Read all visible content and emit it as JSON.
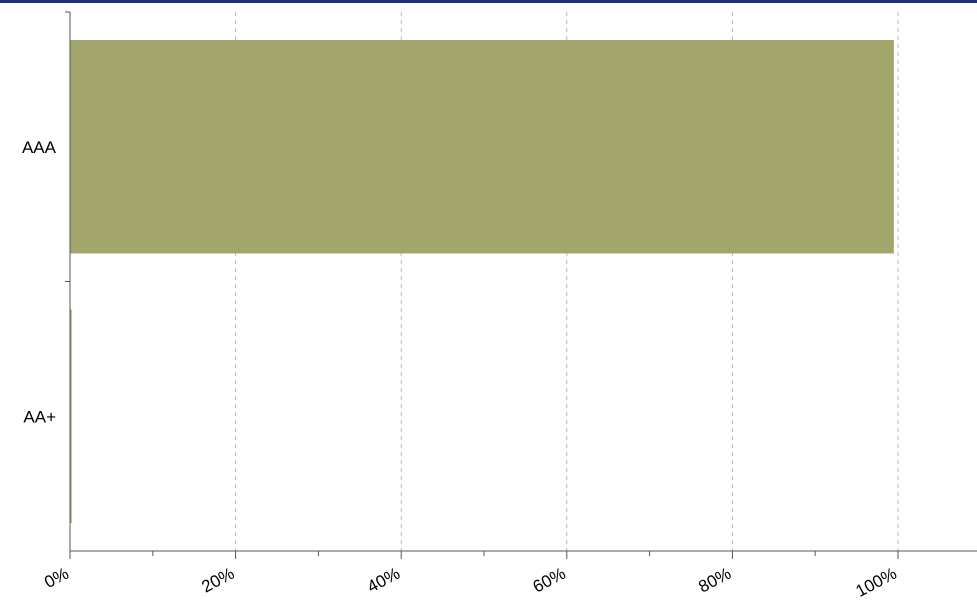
{
  "colors": {
    "top_rule": "#1f2f7a",
    "bar": "#a3a66c",
    "axis": "#555555",
    "grid": "#bbbbbb",
    "text": "#000000"
  },
  "chart_data": {
    "type": "bar",
    "orientation": "horizontal",
    "categories": [
      "AAA",
      "AA+"
    ],
    "values": [
      99.5,
      0.2
    ],
    "title": "",
    "xlabel": "",
    "ylabel": "",
    "xlim": [
      0,
      110
    ],
    "x_ticks": [
      0,
      20,
      40,
      60,
      80,
      100
    ],
    "x_tick_labels": [
      "0%",
      "20%",
      "40%",
      "60%",
      "80%",
      "100%"
    ],
    "grid": true,
    "grid_style": "dashed-vertical",
    "legend": false
  }
}
